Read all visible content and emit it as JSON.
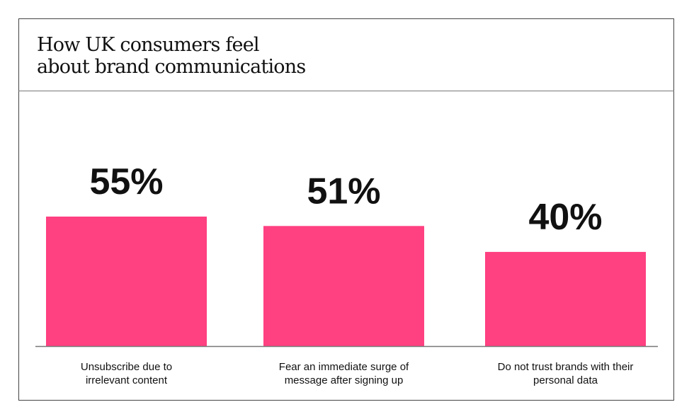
{
  "chart_data": {
    "type": "bar",
    "title": "How UK consumers feel about brand communications",
    "title_lines": [
      "How UK consumers feel",
      "about brand communications"
    ],
    "categories": [
      [
        "Unsubscribe due to",
        "irrelevant content"
      ],
      [
        "Fear an immediate surge of",
        "message after signing up"
      ],
      [
        "Do not trust brands with their",
        "personal data"
      ]
    ],
    "values": [
      55,
      51,
      40
    ],
    "value_labels": [
      "55%",
      "51%",
      "40%"
    ],
    "xlabel": "",
    "ylabel": "",
    "ylim": [
      0,
      100
    ],
    "grid": false,
    "legend": "none",
    "bar_color": "#ff4081"
  }
}
